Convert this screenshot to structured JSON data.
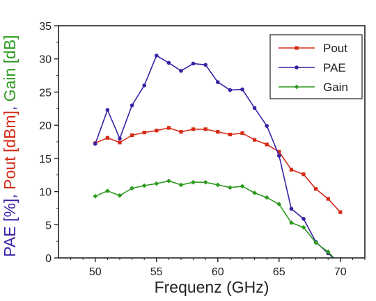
{
  "chart_data": {
    "type": "line",
    "xlabel": "Frequenz (GHz)",
    "ylabel_parts": [
      {
        "text": "PAE [%]",
        "color": "#3b1fa5"
      },
      {
        "text": ", ",
        "color": "#3b1fa5"
      },
      {
        "text": "Pout [dBm]",
        "color": "#d62a16"
      },
      {
        "text": ", ",
        "color": "#3b1fa5"
      },
      {
        "text": "Gain [dB]",
        "color": "#2e9a1f"
      }
    ],
    "xlim": [
      47,
      72
    ],
    "ylim": [
      0,
      35
    ],
    "xticks": [
      50,
      55,
      60,
      65,
      70
    ],
    "yticks": [
      0,
      5,
      10,
      15,
      20,
      25,
      30,
      35
    ],
    "legend_position": "top-right",
    "series": [
      {
        "name": "Pout",
        "color": "#d62a16",
        "marker": "square",
        "x": [
          50,
          51,
          52,
          53,
          54,
          55,
          56,
          57,
          58,
          59,
          60,
          61,
          62,
          63,
          64,
          65,
          66,
          67,
          68,
          69,
          70
        ],
        "y": [
          17.3,
          18.1,
          17.4,
          18.5,
          18.9,
          19.2,
          19.6,
          19.0,
          19.4,
          19.4,
          19.0,
          18.6,
          18.8,
          17.8,
          17.1,
          16.0,
          13.3,
          12.6,
          10.4,
          8.9,
          6.9
        ]
      },
      {
        "name": "PAE",
        "color": "#3b1fa5",
        "marker": "circle",
        "x": [
          50,
          51,
          52,
          53,
          54,
          55,
          56,
          57,
          58,
          59,
          60,
          61,
          62,
          63,
          64,
          65,
          66,
          67,
          68,
          69,
          70
        ],
        "y": [
          17.2,
          22.3,
          18.0,
          23.0,
          26.0,
          30.5,
          29.4,
          28.2,
          29.3,
          29.1,
          26.5,
          25.3,
          25.4,
          22.6,
          19.9,
          15.4,
          7.4,
          5.9,
          2.4,
          0.7,
          -1.0
        ]
      },
      {
        "name": "Gain",
        "color": "#2e9a1f",
        "marker": "diamond",
        "x": [
          50,
          51,
          52,
          53,
          54,
          55,
          56,
          57,
          58,
          59,
          60,
          61,
          62,
          63,
          64,
          65,
          66,
          67,
          68,
          69,
          70
        ],
        "y": [
          9.3,
          10.1,
          9.4,
          10.5,
          10.9,
          11.2,
          11.6,
          11.0,
          11.4,
          11.4,
          11.0,
          10.6,
          10.8,
          9.8,
          9.1,
          8.1,
          5.3,
          4.6,
          2.3,
          0.9,
          -1.0
        ]
      }
    ]
  }
}
